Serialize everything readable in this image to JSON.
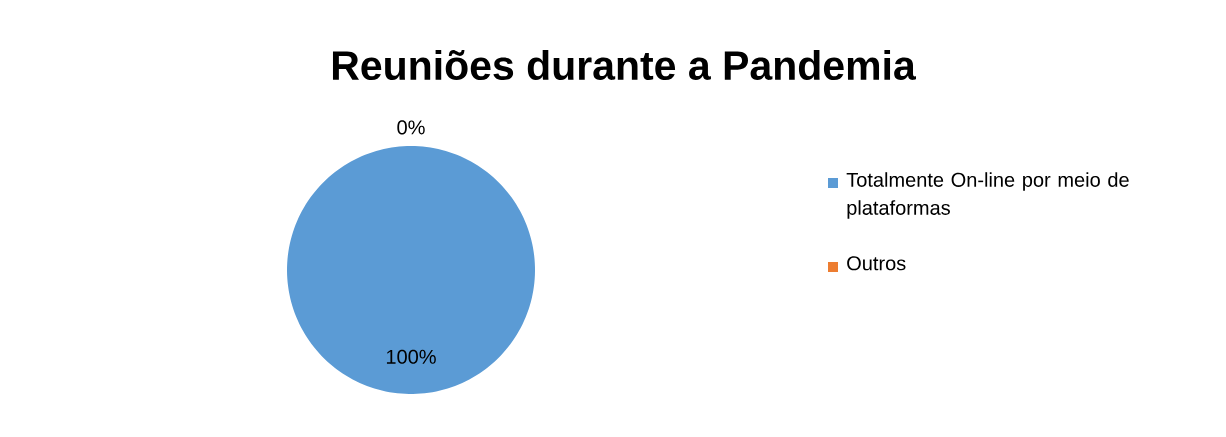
{
  "chart_data": {
    "type": "pie",
    "title": "Reuniões durante a Pandemia",
    "categories": [
      "Totalmente On-line por meio de plataformas",
      "Outros"
    ],
    "values": [
      100,
      0
    ],
    "colors": [
      "#5b9bd5",
      "#ed7d31"
    ],
    "value_labels": [
      "100%",
      "0%"
    ],
    "legend": "right"
  }
}
